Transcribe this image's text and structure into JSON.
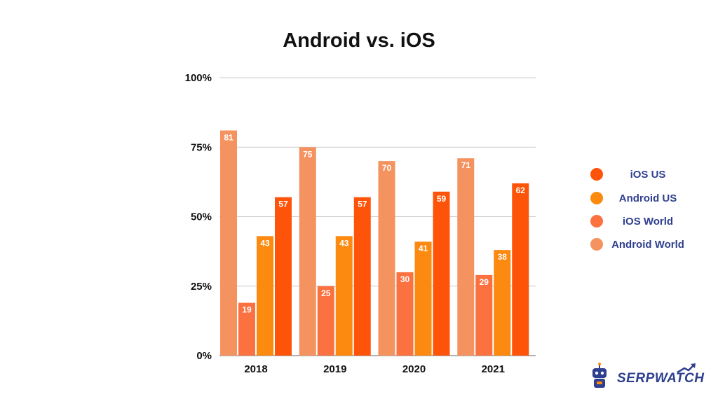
{
  "chart_data": {
    "type": "bar",
    "title": "Android vs. iOS",
    "categories": [
      "2018",
      "2019",
      "2020",
      "2021"
    ],
    "series": [
      {
        "name": "Android World",
        "color": "#f4935f",
        "values": [
          81,
          75,
          70,
          71
        ]
      },
      {
        "name": "iOS World",
        "color": "#fb7140",
        "values": [
          19,
          25,
          30,
          29
        ]
      },
      {
        "name": "Android US",
        "color": "#fd8a10",
        "values": [
          43,
          43,
          41,
          38
        ]
      },
      {
        "name": "iOS US",
        "color": "#fe5409",
        "values": [
          57,
          57,
          59,
          62
        ]
      }
    ],
    "yticks": [
      "0%",
      "25%",
      "50%",
      "75%",
      "100%"
    ],
    "ylim": [
      0,
      100
    ],
    "grid": true,
    "legend_position": "right",
    "legend_order": [
      "iOS US",
      "Android US",
      "iOS World",
      "Android World"
    ]
  },
  "logo": {
    "text": "SERPWATCH",
    "icon": "robot-icon"
  }
}
